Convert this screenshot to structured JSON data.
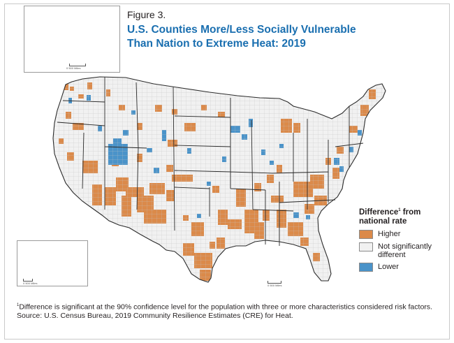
{
  "figure_label": "Figure 3.",
  "title_line1": "U.S. Counties More/Less Socially Vulnerable",
  "title_line2": "Than Nation to Extreme Heat: 2019",
  "legend": {
    "title_word": "Difference",
    "title_sup": "1",
    "title_rest": " from national rate",
    "items": [
      {
        "label": "Higher",
        "color": "#db8a4a"
      },
      {
        "label": "Not significantly different",
        "color": "#f1f1f1"
      },
      {
        "label": "Lower",
        "color": "#4a93c9"
      }
    ]
  },
  "scale_label": "0    500 Miles",
  "footnote": {
    "marker": "1",
    "text": "Difference is significant at the 90% confidence level for the population with three or more characteristics considered risk factors.",
    "source": "Source: U.S. Census Bureau, 2019 Community Resilience Estimates (CRE) for Heat."
  },
  "colors": {
    "higher": "#db8a4a",
    "not_significant": "#f1f1f1",
    "lower": "#4a93c9",
    "title_blue": "#1a6fb0",
    "state_border": "#2b2b2b",
    "county_border": "#b9b9b9"
  }
}
